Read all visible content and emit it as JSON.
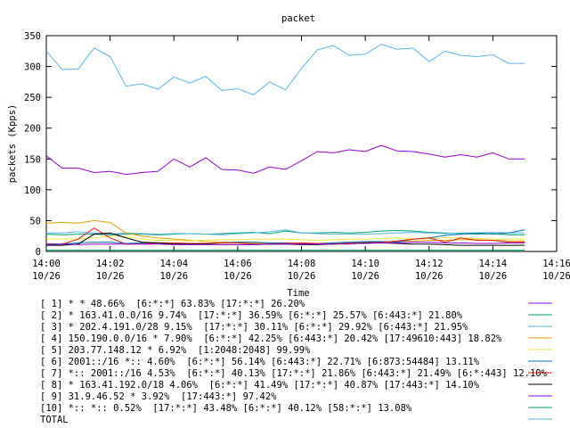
{
  "chart_data": {
    "type": "line",
    "title": "packet",
    "x_label": "Time",
    "y_label": "packets (Kpps)",
    "x": [
      0,
      0.5,
      1,
      1.5,
      2,
      2.5,
      3,
      3.5,
      4,
      4.5,
      5,
      5.5,
      6,
      6.5,
      7,
      7.5,
      8,
      8.5,
      9,
      9.5,
      10,
      10.5,
      11,
      11.5,
      12,
      12.5,
      13,
      13.5,
      14,
      14.5,
      15
    ],
    "xlim": [
      0,
      16
    ],
    "xticks": [
      {
        "value": 0,
        "label": "14:00\n10/26"
      },
      {
        "value": 2,
        "label": "14:02\n10/26"
      },
      {
        "value": 4,
        "label": "14:04\n10/26"
      },
      {
        "value": 6,
        "label": "14:06\n10/26"
      },
      {
        "value": 8,
        "label": "14:08\n10/26"
      },
      {
        "value": 10,
        "label": "14:10\n10/26"
      },
      {
        "value": 12,
        "label": "14:12\n10/26"
      },
      {
        "value": 14,
        "label": "14:14\n10/26"
      },
      {
        "value": 16,
        "label": "14:16\n10/26"
      }
    ],
    "ylim": [
      0,
      350
    ],
    "yticks": [
      0,
      50,
      100,
      150,
      200,
      250,
      300,
      350
    ],
    "grid": false,
    "series": [
      {
        "name": "[ 1] * * 48.66%  [6:*:*] 63.83% [17:*:*] 26.20%",
        "color": "#9400d3",
        "values": [
          155,
          135,
          135,
          128,
          130,
          125,
          128,
          130,
          150,
          137,
          152,
          133,
          132,
          127,
          137,
          133,
          147,
          162,
          160,
          165,
          162,
          172,
          163,
          162,
          158,
          153,
          157,
          153,
          160,
          150,
          150
        ]
      },
      {
        "name": "[ 2] * 163.41.0.0/16 9.74%  [17:*:*] 36.59% [6:*:*] 25.57% [6:443:*] 21.80%",
        "color": "#009e73",
        "values": [
          28,
          27,
          28,
          28,
          27,
          28,
          28,
          27,
          28,
          29,
          28,
          29,
          30,
          31,
          29,
          33,
          30,
          30,
          31,
          30,
          31,
          33,
          34,
          33,
          31,
          30,
          29,
          28,
          29,
          27,
          27
        ]
      },
      {
        "name": "[ 3] * 202.4.191.0/28 9.15%  [17:*:*] 30.11% [6:*:*] 29.92% [6:443:*] 21.95%",
        "color": "#56b4e9",
        "values": [
          30,
          30,
          32,
          30,
          28,
          30,
          29,
          28,
          29,
          29,
          28,
          27,
          29,
          30,
          32,
          35,
          30,
          29,
          28,
          28,
          28,
          29,
          30,
          31,
          30,
          29,
          30,
          30,
          31,
          30,
          30
        ]
      },
      {
        "name": "[ 4] 150.190.0.0/16 * 7.90%  [6:*:*] 42.25% [6:443:*] 20.42% [17:49610:443] 18.82%",
        "color": "#e69f00",
        "values": [
          46,
          47,
          46,
          50,
          47,
          30,
          25,
          22,
          20,
          18,
          16,
          15,
          15,
          14,
          13,
          13,
          12,
          12,
          13,
          14,
          15,
          15,
          16,
          17,
          18,
          18,
          19,
          19,
          18,
          17,
          17
        ]
      },
      {
        "name": "[ 5] 203.77.148.12 * 6.92%  [1:2048:2048] 99.99%",
        "color": "#f0e442",
        "values": [
          20,
          20,
          20,
          22,
          25,
          24,
          20,
          18,
          18,
          17,
          18,
          19,
          19,
          20,
          20,
          20,
          19,
          18,
          19,
          20,
          20,
          21,
          22,
          20,
          21,
          22,
          22,
          21,
          20,
          20,
          20
        ]
      },
      {
        "name": "[ 6] 2001::/16 *:: 4.60%  [6:*:*] 56.14% [6:443:*] 22.71% [6:873:54484] 13.11%",
        "color": "#0072b2",
        "values": [
          10,
          12,
          14,
          15,
          15,
          13,
          14,
          14,
          12,
          12,
          13,
          14,
          15,
          15,
          14,
          14,
          13,
          13,
          14,
          15,
          16,
          16,
          15,
          20,
          22,
          26,
          28,
          30,
          28,
          30,
          35
        ]
      },
      {
        "name": "[ 7] *:: 2001::/16 4.53%  [6:*:*] 40.13% [17:*:*] 21.86% [6:443:*] 21.49% [6:*:443] 12.10%",
        "color": "#e51e10",
        "values": [
          12,
          12,
          20,
          38,
          22,
          12,
          12,
          14,
          14,
          13,
          13,
          14,
          14,
          12,
          12,
          13,
          14,
          13,
          12,
          12,
          14,
          15,
          17,
          20,
          22,
          15,
          22,
          18,
          18,
          15,
          15
        ]
      },
      {
        "name": "[ 8] * 163.41.192.0/18 4.06%  [6:*:*] 41.49% [17:*:*] 40.87% [17:443:*] 14.10%",
        "color": "#000000",
        "values": [
          10,
          10,
          12,
          28,
          30,
          22,
          15,
          14,
          12,
          12,
          12,
          11,
          11,
          11,
          12,
          12,
          11,
          11,
          12,
          13,
          14,
          14,
          13,
          12,
          12,
          11,
          10,
          10,
          10,
          10,
          10
        ]
      },
      {
        "name": "[ 9] 31.9.46.52 * 3.92%  [17:443:*] 97.42%",
        "color": "#9400d3",
        "values": [
          12,
          12,
          11,
          12,
          12,
          12,
          12,
          12,
          11,
          11,
          11,
          11,
          11,
          11,
          12,
          12,
          12,
          12,
          12,
          13,
          13,
          14,
          14,
          15,
          15,
          14,
          14,
          13,
          13,
          14,
          14
        ]
      },
      {
        "name": "[10] *:: *:: 0.52%  [17:*:*] 43.48% [6:*:*] 40.12% [58:*:*] 13.08%",
        "color": "#009e73",
        "values": [
          2,
          2,
          2,
          2,
          2,
          2,
          2,
          2,
          2,
          2,
          2,
          2,
          2,
          2,
          2,
          2,
          2,
          2,
          2,
          2,
          2,
          2,
          2,
          2,
          2,
          2,
          2,
          2,
          2,
          2,
          2
        ]
      },
      {
        "name": "TOTAL",
        "color": "#56b4e9",
        "values": [
          325,
          295,
          296,
          330,
          316,
          268,
          272,
          263,
          283,
          273,
          284,
          261,
          264,
          254,
          275,
          262,
          297,
          327,
          334,
          318,
          320,
          336,
          328,
          330,
          308,
          325,
          318,
          316,
          319,
          305,
          305
        ]
      }
    ]
  }
}
